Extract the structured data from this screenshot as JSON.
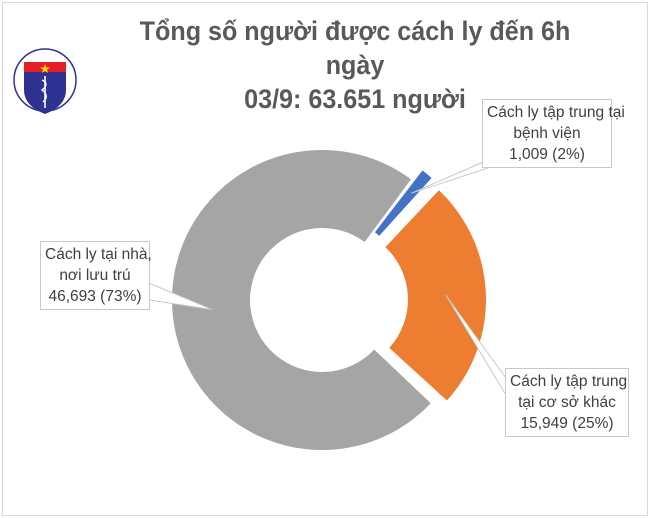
{
  "logo": {
    "top_text": "BỘ Y TẾ",
    "bottom_text": "MINISTRY OF HEALTH"
  },
  "chart_data": {
    "type": "pie",
    "variant": "donut",
    "title": "Tổng số người được cách ly đến 6h ngày 03/9: 63.651 người",
    "title_lines": [
      "Tổng số người được cách ly đến 6h ngày",
      "03/9: 63.651 người"
    ],
    "slices": [
      {
        "label_lines": [
          "Cách ly tập trung tại",
          "bệnh viện"
        ],
        "value": 1009,
        "value_text": "1,009 (2%)",
        "percent": 2,
        "color": "#4472c4"
      },
      {
        "label_lines": [
          "Cách ly tập trung",
          "tại cơ sở khác"
        ],
        "value": 15949,
        "value_text": "15,949 (25%)",
        "percent": 25,
        "color": "#ed7d31"
      },
      {
        "label_lines": [
          "Cách ly tại nhà,",
          "nơi lưu trú"
        ],
        "value": 46693,
        "value_text": "46,693 (73%)",
        "percent": 73,
        "color": "#a5a5a5"
      }
    ],
    "legend": "none"
  }
}
